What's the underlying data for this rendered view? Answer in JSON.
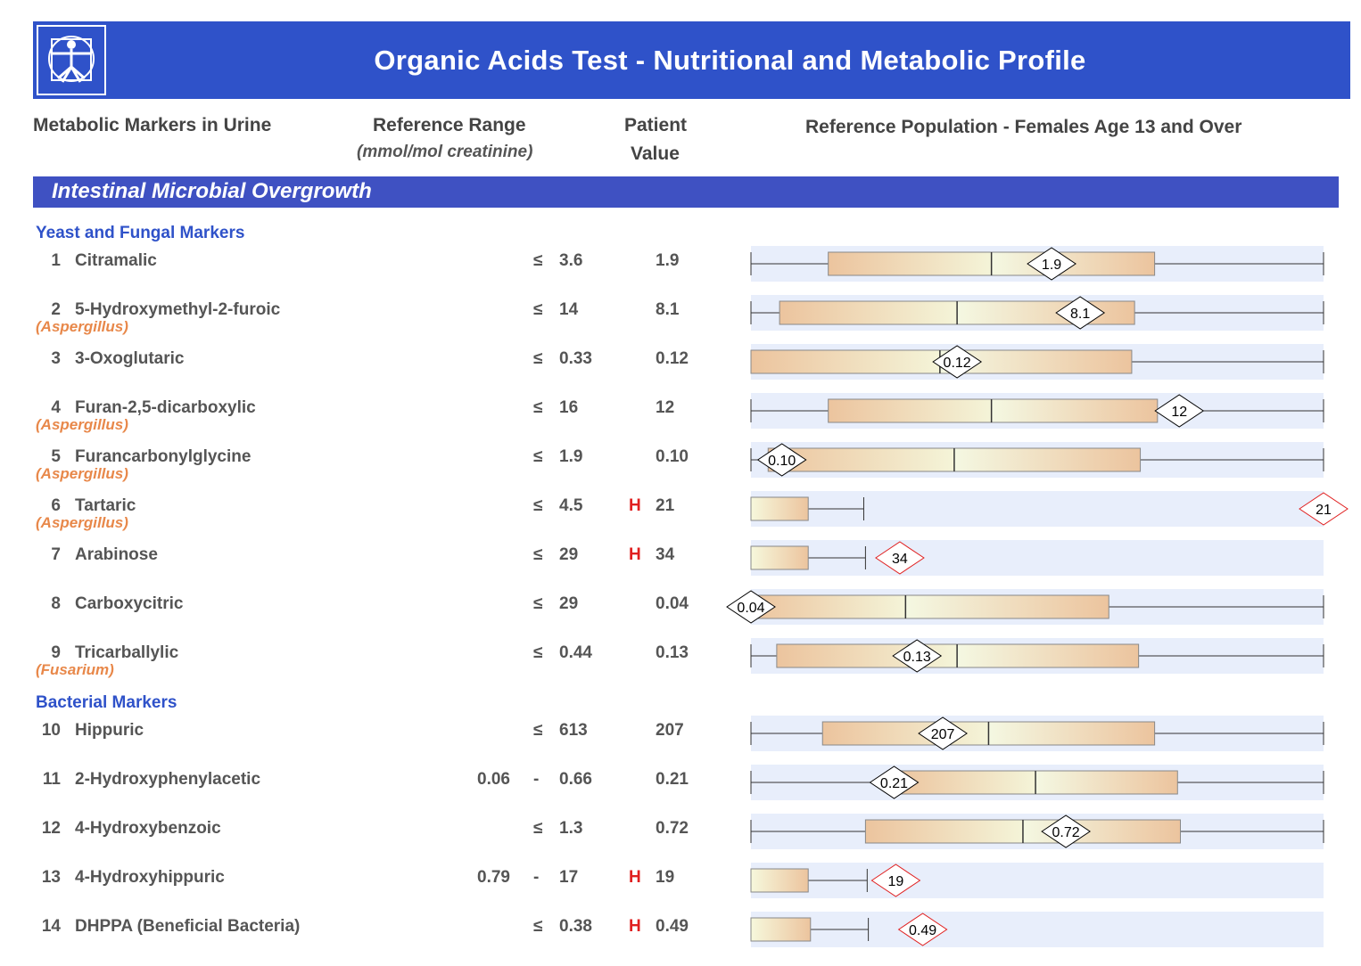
{
  "header": {
    "title": "Organic Acids Test - Nutritional and Metabolic Profile",
    "col_markers": "Metabolic Markers in Urine",
    "col_range": "Reference Range",
    "col_range_units": "(mmol/mol creatinine)",
    "col_patient_1": "Patient",
    "col_patient_2": "Value",
    "col_population": "Reference Population - Females Age 13 and Over"
  },
  "section": {
    "title": "Intestinal Microbial Overgrowth"
  },
  "groups": {
    "yeast": "Yeast and Fungal Markers",
    "bacterial": "Bacterial Markers"
  },
  "colors": {
    "banner": "#2f52c9",
    "section": "#3f51c2",
    "high_flag": "#e02020",
    "normal_diamond": "#000000",
    "high_diamond": "#e02020",
    "subnote": "#e8884a"
  },
  "rows": [
    {
      "num": "1",
      "name": "Citramalic",
      "sub": "",
      "lo": "",
      "sym": "≤",
      "hi": "3.6",
      "flag": "",
      "value": "1.9"
    },
    {
      "num": "2",
      "name": "5-Hydroxymethyl-2-furoic",
      "sub": "(Aspergillus)",
      "lo": "",
      "sym": "≤",
      "hi": "14",
      "flag": "",
      "value": "8.1"
    },
    {
      "num": "3",
      "name": "3-Oxoglutaric",
      "sub": "",
      "lo": "",
      "sym": "≤",
      "hi": "0.33",
      "flag": "",
      "value": "0.12"
    },
    {
      "num": "4",
      "name": "Furan-2,5-dicarboxylic",
      "sub": "(Aspergillus)",
      "lo": "",
      "sym": "≤",
      "hi": "16",
      "flag": "",
      "value": "12"
    },
    {
      "num": "5",
      "name": "Furancarbonylglycine",
      "sub": "(Aspergillus)",
      "lo": "",
      "sym": "≤",
      "hi": "1.9",
      "flag": "",
      "value": "0.10"
    },
    {
      "num": "6",
      "name": "Tartaric",
      "sub": "(Aspergillus)",
      "lo": "",
      "sym": "≤",
      "hi": "4.5",
      "flag": "H",
      "value": "21"
    },
    {
      "num": "7",
      "name": "Arabinose",
      "sub": "",
      "lo": "",
      "sym": "≤",
      "hi": "29",
      "flag": "H",
      "value": "34"
    },
    {
      "num": "8",
      "name": "Carboxycitric",
      "sub": "",
      "lo": "",
      "sym": "≤",
      "hi": "29",
      "flag": "",
      "value": "0.04"
    },
    {
      "num": "9",
      "name": "Tricarballylic",
      "sub": "(Fusarium)",
      "lo": "",
      "sym": "≤",
      "hi": "0.44",
      "flag": "",
      "value": "0.13"
    },
    {
      "num": "10",
      "name": "Hippuric",
      "sub": "",
      "lo": "",
      "sym": "≤",
      "hi": "613",
      "flag": "",
      "value": "207"
    },
    {
      "num": "11",
      "name": "2-Hydroxyphenylacetic",
      "sub": "",
      "lo": "0.06",
      "sym": "-",
      "hi": "0.66",
      "flag": "",
      "value": "0.21"
    },
    {
      "num": "12",
      "name": "4-Hydroxybenzoic",
      "sub": "",
      "lo": "",
      "sym": "≤",
      "hi": "1.3",
      "flag": "",
      "value": "0.72"
    },
    {
      "num": "13",
      "name": "4-Hydroxyhippuric",
      "sub": "",
      "lo": "0.79",
      "sym": "-",
      "hi": "17",
      "flag": "H",
      "value": "19"
    },
    {
      "num": "14",
      "name": "DHPPA (Beneficial Bacteria)",
      "sub": "",
      "lo": "",
      "sym": "≤",
      "hi": "0.38",
      "flag": "H",
      "value": "0.49"
    }
  ],
  "chart_data": {
    "type": "boxplot",
    "title": "Reference Population - Females Age 13 and Over",
    "note": "Horizontal box plots per marker; whisker ends, box quartiles and median as fractions of the plotted reference scale, patient value as a diamond marker (red when high).",
    "series": [
      {
        "marker": "Citramalic",
        "value": "1.9",
        "high": false,
        "whisker": [
          0.0,
          1.0
        ],
        "box": [
          0.135,
          0.705
        ],
        "median": 0.42,
        "point": 0.525
      },
      {
        "marker": "5-Hydroxymethyl-2-furoic",
        "value": "8.1",
        "high": false,
        "whisker": [
          0.0,
          1.0
        ],
        "box": [
          0.05,
          0.67
        ],
        "median": 0.36,
        "point": 0.575
      },
      {
        "marker": "3-Oxoglutaric",
        "value": "0.12",
        "high": false,
        "whisker": [
          0.0,
          1.0
        ],
        "box": [
          0.0,
          0.665
        ],
        "median": 0.33,
        "point": 0.36
      },
      {
        "marker": "Furan-2,5-dicarboxylic",
        "value": "12",
        "high": false,
        "whisker": [
          0.0,
          1.0
        ],
        "box": [
          0.135,
          0.71
        ],
        "median": 0.42,
        "point": 0.748
      },
      {
        "marker": "Furancarbonylglycine",
        "value": "0.10",
        "high": false,
        "whisker": [
          0.0,
          1.0
        ],
        "box": [
          0.03,
          0.68
        ],
        "median": 0.355,
        "point": 0.054
      },
      {
        "marker": "Tartaric",
        "value": "21",
        "high": true,
        "whisker": [
          0.0,
          0.197
        ],
        "box": [
          0.0,
          0.1
        ],
        "median": null,
        "point": 1.0
      },
      {
        "marker": "Arabinose",
        "value": "34",
        "high": true,
        "whisker": [
          0.0,
          0.2
        ],
        "box": [
          0.0,
          0.1
        ],
        "median": null,
        "point": 0.26
      },
      {
        "marker": "Carboxycitric",
        "value": "0.04",
        "high": false,
        "whisker": [
          0.0,
          1.0
        ],
        "box": [
          0.0,
          0.625
        ],
        "median": 0.27,
        "point": 0.0
      },
      {
        "marker": "Tricarballylic",
        "value": "0.13",
        "high": false,
        "whisker": [
          0.0,
          1.0
        ],
        "box": [
          0.045,
          0.677
        ],
        "median": 0.36,
        "point": 0.29
      },
      {
        "marker": "Hippuric",
        "value": "207",
        "high": false,
        "whisker": [
          0.0,
          1.0
        ],
        "box": [
          0.125,
          0.705
        ],
        "median": 0.415,
        "point": 0.335
      },
      {
        "marker": "2-Hydroxyphenylacetic",
        "value": "0.21",
        "high": false,
        "whisker": [
          0.0,
          1.0
        ],
        "box": [
          0.25,
          0.745
        ],
        "median": 0.497,
        "point": 0.25
      },
      {
        "marker": "4-Hydroxybenzoic",
        "value": "0.72",
        "high": false,
        "whisker": [
          0.0,
          1.0
        ],
        "box": [
          0.2,
          0.75
        ],
        "median": 0.475,
        "point": 0.55
      },
      {
        "marker": "4-Hydroxyhippuric",
        "value": "19",
        "high": true,
        "whisker": [
          0.0,
          0.203
        ],
        "box": [
          0.0,
          0.1
        ],
        "median": null,
        "point": 0.253
      },
      {
        "marker": "DHPPA (Beneficial Bacteria)",
        "value": "0.49",
        "high": true,
        "whisker": [
          0.0,
          0.205
        ],
        "box": [
          0.0,
          0.104
        ],
        "median": null,
        "point": 0.3
      }
    ]
  }
}
